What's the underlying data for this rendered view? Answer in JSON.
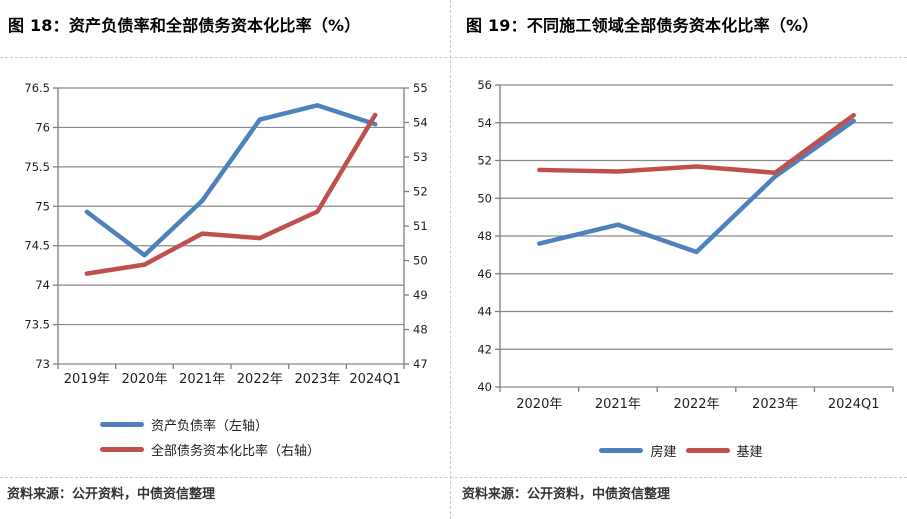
{
  "panels": [
    {
      "source": "资料来源：公开资料，中债资信整理"
    },
    {
      "source": "资料来源：公开资料，中债资信整理"
    }
  ],
  "colors": {
    "series_blue": "#4F81BD",
    "series_red": "#C0504D",
    "gridline": "#8a8a8a",
    "axis": "#7f7f7f",
    "divider": "#c9c9c9"
  },
  "chart_data": [
    {
      "type": "line",
      "title": "图 18：资产负债率和全部债务资本化比率（%）",
      "categories": [
        "2019年",
        "2020年",
        "2021年",
        "2022年",
        "2023年",
        "2024Q1"
      ],
      "series": [
        {
          "name": "资产负债率（左轴）",
          "axis": "left",
          "color": "#4F81BD",
          "values": [
            74.93,
            74.38,
            75.07,
            76.1,
            76.28,
            76.04
          ]
        },
        {
          "name": "全部债务资本化比率（右轴）",
          "axis": "right",
          "color": "#C0504D",
          "values": [
            49.62,
            49.88,
            50.78,
            50.65,
            51.42,
            54.22
          ]
        }
      ],
      "y_left": {
        "min": 73,
        "max": 76.5,
        "step": 0.5,
        "ticks": [
          "73",
          "73.5",
          "74",
          "74.5",
          "75",
          "75.5",
          "76",
          "76.5"
        ]
      },
      "y_right": {
        "min": 47,
        "max": 55,
        "step": 1,
        "ticks": [
          "47",
          "48",
          "49",
          "50",
          "51",
          "52",
          "53",
          "54",
          "55"
        ]
      },
      "grid": true,
      "legend_position": "bottom-left"
    },
    {
      "type": "line",
      "title": "图 19：不同施工领域全部债务资本化比率（%）",
      "categories": [
        "2020年",
        "2021年",
        "2022年",
        "2023年",
        "2024Q1"
      ],
      "series": [
        {
          "name": "房建",
          "axis": "left",
          "color": "#4F81BD",
          "values": [
            47.6,
            48.6,
            47.15,
            51.15,
            54.1
          ]
        },
        {
          "name": "基建",
          "axis": "left",
          "color": "#C0504D",
          "values": [
            51.5,
            51.42,
            51.68,
            51.35,
            54.4
          ]
        }
      ],
      "y_left": {
        "min": 40,
        "max": 56,
        "step": 2,
        "ticks": [
          "40",
          "42",
          "44",
          "46",
          "48",
          "50",
          "52",
          "54",
          "56"
        ]
      },
      "grid": true,
      "legend_position": "bottom-center"
    }
  ]
}
